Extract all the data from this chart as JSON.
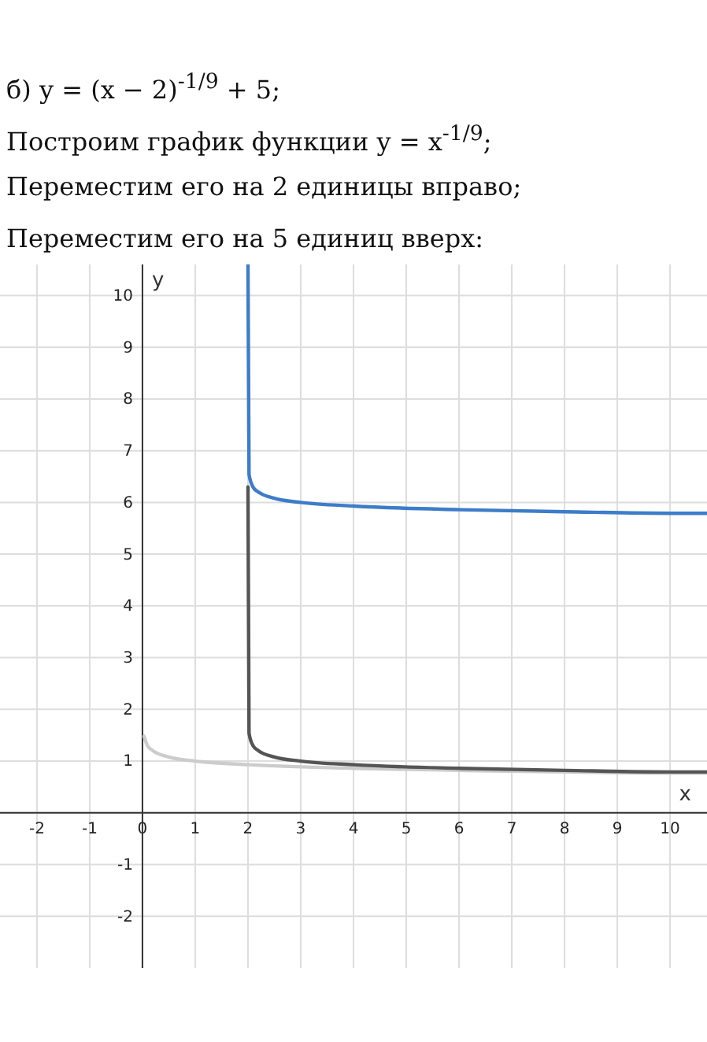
{
  "chart_data": {
    "type": "line",
    "title": "б) y = (x − 2)$^{-1/9}$ + 5;",
    "annotations": [
      "Построим график функции y = x$^{-1/9}$;",
      "Переместим его на 2 единицы вправо;",
      "Переместим его на 5 единиц вверх:"
    ],
    "xlabel": "x",
    "ylabel": "y",
    "series": [
      {
        "color": "#cccccc",
        "x": [
          0.03,
          0.1,
          0.2,
          0.5,
          1,
          2,
          4,
          6,
          8,
          10,
          10.7
        ],
        "values": [
          1.48,
          1.29,
          1.2,
          1.08,
          1,
          0.93,
          0.86,
          0.82,
          0.79,
          0.77,
          0.77
        ]
      },
      {
        "color": "#555555",
        "x": [
          2,
          2.02,
          2.1,
          2.2,
          2.5,
          3,
          4,
          6,
          8,
          10,
          10.7
        ],
        "values": [
          6.3,
          1.54,
          1.29,
          1.2,
          1.08,
          1,
          0.93,
          0.86,
          0.82,
          0.79,
          0.79
        ]
      },
      {
        "color": "#3d7cc9",
        "x": [
          2,
          2.02,
          2.1,
          2.2,
          2.5,
          3,
          4,
          6,
          8,
          10,
          10.7
        ],
        "values": [
          10.6,
          6.54,
          6.29,
          6.2,
          6.08,
          6,
          5.93,
          5.86,
          5.82,
          5.79,
          5.79
        ]
      }
    ],
    "xlim": [
      -2.7,
      10.7
    ],
    "ylim": [
      -3,
      10.6
    ],
    "xticks": [
      -2,
      -1,
      0,
      1,
      2,
      3,
      4,
      5,
      6,
      7,
      8,
      9,
      10
    ],
    "yticks": [
      -2,
      -1,
      {
        "value": 0,
        "label": null
      },
      1,
      2,
      3,
      4,
      5,
      6,
      7,
      8,
      9,
      10
    ],
    "grid": true,
    "marker": "none",
    "line_style": "solid"
  }
}
